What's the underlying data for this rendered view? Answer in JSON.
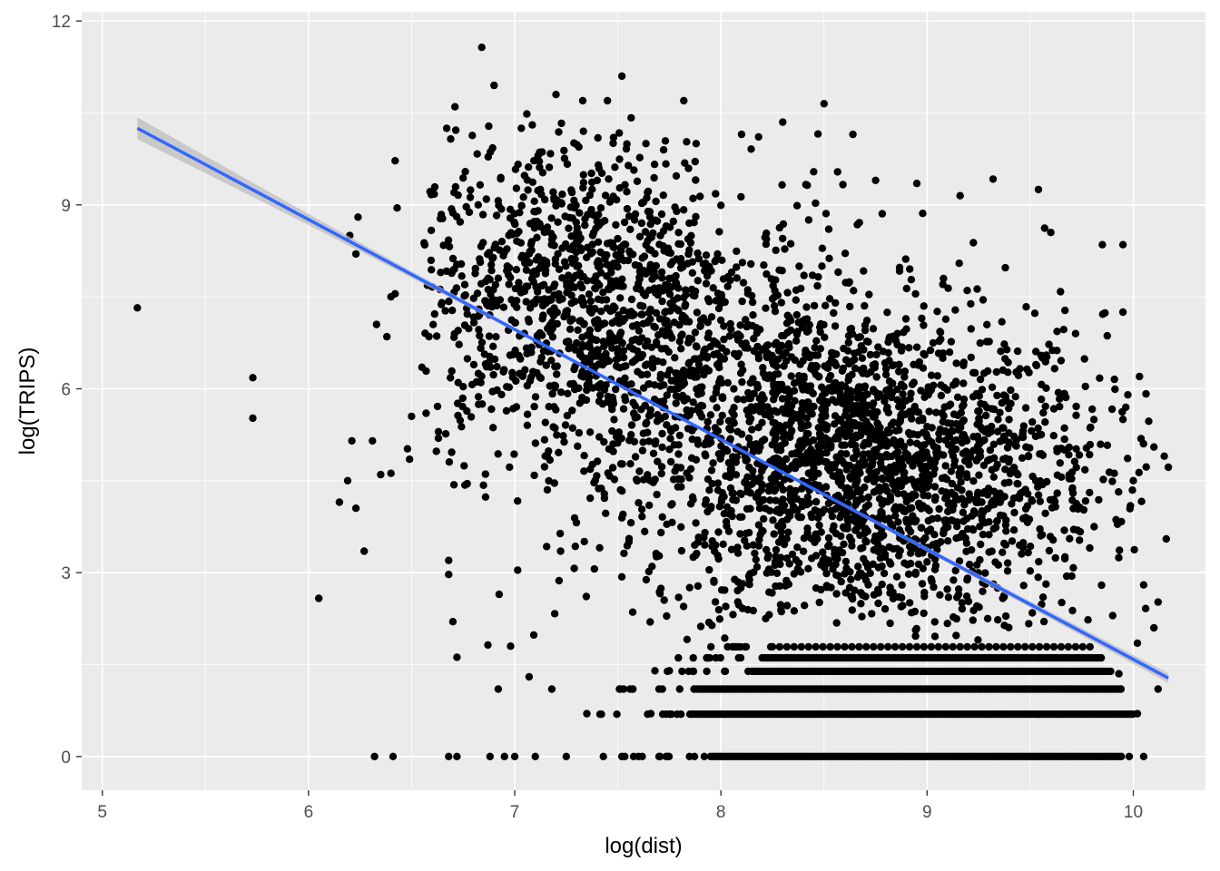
{
  "chart_data": {
    "type": "scatter",
    "title": "",
    "xlabel": "log(dist)",
    "ylabel": "log(TRIPS)",
    "xlim": [
      4.9,
      10.35
    ],
    "ylim": [
      -0.55,
      12.15
    ],
    "x_ticks": [
      5,
      6,
      7,
      8,
      9,
      10
    ],
    "y_ticks": [
      0,
      3,
      6,
      9,
      12
    ],
    "x_minor_ticks": [
      5.5,
      6.5,
      7.5,
      8.5,
      9.5
    ],
    "y_minor_ticks": [
      1.5,
      4.5,
      7.5,
      10.5
    ],
    "grid": true,
    "legend": "none",
    "colors": {
      "panel": "#ebebeb",
      "grid": "#ffffff",
      "points": "#000000",
      "fit_line": "#3366ff",
      "confidence_band": "#bdbdbd"
    },
    "fit_line": {
      "method": "lm",
      "x": [
        5.17,
        10.17
      ],
      "y": [
        10.25,
        1.28
      ],
      "se_band_width_at_ends": [
        0.18,
        0.08
      ]
    },
    "series": [
      {
        "points_sampled": [
          [
            5.17,
            7.32
          ],
          [
            5.73,
            6.18
          ],
          [
            5.73,
            5.52
          ],
          [
            6.05,
            2.58
          ],
          [
            6.15,
            4.15
          ],
          [
            6.19,
            4.5
          ],
          [
            6.21,
            5.15
          ],
          [
            6.23,
            4.05
          ],
          [
            6.27,
            3.35
          ],
          [
            6.24,
            8.8
          ],
          [
            6.2,
            8.5
          ],
          [
            6.23,
            8.2
          ],
          [
            6.31,
            5.15
          ],
          [
            6.35,
            4.6
          ],
          [
            6.4,
            4.62
          ],
          [
            6.33,
            7.05
          ],
          [
            6.38,
            6.85
          ],
          [
            6.4,
            7.5
          ],
          [
            6.42,
            7.55
          ],
          [
            6.43,
            8.95
          ],
          [
            6.42,
            9.72
          ],
          [
            6.5,
            5.55
          ],
          [
            6.48,
            5.02
          ],
          [
            6.49,
            4.85
          ],
          [
            6.55,
            6.35
          ],
          [
            6.57,
            5.6
          ],
          [
            6.62,
            4.98
          ],
          [
            6.63,
            5.3
          ],
          [
            6.32,
            0.0
          ],
          [
            6.41,
            0.0
          ],
          [
            6.68,
            3.2
          ],
          [
            6.68,
            2.97
          ],
          [
            6.72,
            1.62
          ],
          [
            6.7,
            2.2
          ],
          [
            6.67,
            10.25
          ],
          [
            6.71,
            10.6
          ],
          [
            6.84,
            11.57
          ],
          [
            6.9,
            10.95
          ],
          [
            6.87,
            1.82
          ],
          [
            6.92,
            1.1
          ],
          [
            6.98,
            1.8
          ],
          [
            6.68,
            0.0
          ],
          [
            6.72,
            0.0
          ],
          [
            6.88,
            0.0
          ],
          [
            6.95,
            0.0
          ],
          [
            7.0,
            0.0
          ],
          [
            7.1,
            0.0
          ],
          [
            7.07,
            1.3
          ],
          [
            7.18,
            1.1
          ],
          [
            7.25,
            0.0
          ],
          [
            7.52,
            11.1
          ],
          [
            7.45,
            10.7
          ],
          [
            7.33,
            10.7
          ],
          [
            7.2,
            10.8
          ],
          [
            7.35,
            0.7
          ],
          [
            7.43,
            0.0
          ],
          [
            7.52,
            0.0
          ],
          [
            7.6,
            0.0
          ],
          [
            7.66,
            0.7
          ],
          [
            7.7,
            0.0
          ],
          [
            7.68,
            1.4
          ],
          [
            7.75,
            1.4
          ],
          [
            7.8,
            1.1
          ],
          [
            7.82,
            10.7
          ],
          [
            7.88,
            10.0
          ],
          [
            8.1,
            10.15
          ],
          [
            8.3,
            10.35
          ],
          [
            8.5,
            10.65
          ],
          [
            8.64,
            10.15
          ],
          [
            8.75,
            9.4
          ],
          [
            8.95,
            9.35
          ],
          [
            9.32,
            9.42
          ],
          [
            9.54,
            9.25
          ],
          [
            9.57,
            8.62
          ],
          [
            9.6,
            8.55
          ],
          [
            9.85,
            8.35
          ],
          [
            9.95,
            8.35
          ],
          [
            9.95,
            7.25
          ],
          [
            10.03,
            6.2
          ],
          [
            10.1,
            5.05
          ],
          [
            10.15,
            4.9
          ],
          [
            10.17,
            4.72
          ],
          [
            10.16,
            3.55
          ],
          [
            10.05,
            2.8
          ],
          [
            10.12,
            2.52
          ],
          [
            10.1,
            2.1
          ],
          [
            10.02,
            1.85
          ],
          [
            10.12,
            1.1
          ],
          [
            10.02,
            0.7
          ],
          [
            10.05,
            0.0
          ],
          [
            9.98,
            0.0
          ],
          [
            9.93,
            1.35
          ],
          [
            9.9,
            2.3
          ],
          [
            9.72,
            6.9
          ],
          [
            9.95,
            5.5
          ],
          [
            10.0,
            4.5
          ]
        ],
        "density_clusters": [
          {
            "x_mean": 8.75,
            "y_mean": 4.6,
            "x_sd": 0.55,
            "y_sd": 1.3,
            "weight": 0.55
          },
          {
            "x_mean": 7.3,
            "y_mean": 7.5,
            "x_sd": 0.4,
            "y_sd": 1.3,
            "weight": 0.3
          },
          {
            "x_mean": 8.1,
            "y_mean": 6.0,
            "x_sd": 0.45,
            "y_sd": 1.5,
            "weight": 0.15
          }
        ],
        "discrete_rows": [
          {
            "y": 0.0,
            "x_range": [
              7.95,
              9.95
            ],
            "dense": true
          },
          {
            "y": 0.69,
            "x_range": [
              7.85,
              10.0
            ],
            "dense": true
          },
          {
            "y": 1.1,
            "x_range": [
              7.9,
              9.95
            ],
            "dense": true
          },
          {
            "y": 1.39,
            "x_range": [
              8.15,
              9.9
            ],
            "dense": true
          },
          {
            "y": 1.61,
            "x_range": [
              8.2,
              9.85
            ],
            "dense": true
          },
          {
            "y": 1.79,
            "x_range": [
              8.25,
              9.8
            ],
            "dense": false
          }
        ]
      }
    ]
  }
}
